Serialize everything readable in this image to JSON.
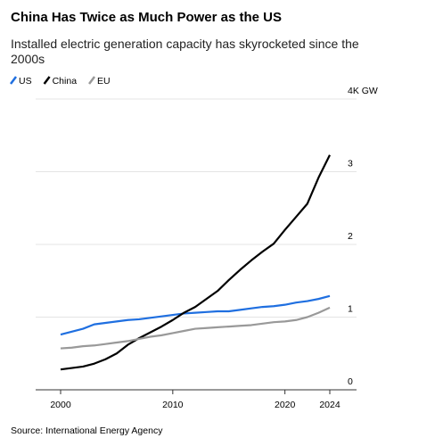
{
  "chart_data": {
    "type": "line",
    "title": "China Has Twice as Much Power as the US",
    "subtitle": [
      "Installed electric generation capacity has skyrocketed since the",
      "2000s"
    ],
    "source": "Source: International Energy Agency",
    "x": [
      2000,
      2001,
      2002,
      2003,
      2004,
      2005,
      2006,
      2007,
      2008,
      2009,
      2010,
      2011,
      2012,
      2013,
      2014,
      2015,
      2016,
      2017,
      2018,
      2019,
      2020,
      2021,
      2022,
      2023,
      2024
    ],
    "series": [
      {
        "name": "US",
        "color": "#1f6fe0",
        "values": [
          0.76,
          0.8,
          0.84,
          0.9,
          0.92,
          0.94,
          0.96,
          0.97,
          0.99,
          1.01,
          1.03,
          1.05,
          1.06,
          1.07,
          1.08,
          1.08,
          1.1,
          1.12,
          1.14,
          1.15,
          1.17,
          1.2,
          1.22,
          1.25,
          1.29
        ]
      },
      {
        "name": "China",
        "color": "#000000",
        "values": [
          0.28,
          0.3,
          0.32,
          0.36,
          0.42,
          0.5,
          0.62,
          0.71,
          0.79,
          0.87,
          0.96,
          1.06,
          1.14,
          1.25,
          1.36,
          1.51,
          1.65,
          1.78,
          1.9,
          2.01,
          2.2,
          2.38,
          2.56,
          2.92,
          3.23
        ]
      },
      {
        "name": "EU",
        "color": "#999999",
        "values": [
          0.57,
          0.58,
          0.6,
          0.61,
          0.63,
          0.65,
          0.67,
          0.7,
          0.73,
          0.75,
          0.78,
          0.81,
          0.84,
          0.85,
          0.86,
          0.87,
          0.88,
          0.89,
          0.91,
          0.93,
          0.94,
          0.96,
          1.0,
          1.06,
          1.13
        ]
      }
    ],
    "xlim": [
      2000,
      2024
    ],
    "xticks": [
      2000,
      2010,
      2020,
      2024
    ],
    "ylim": [
      0,
      4
    ],
    "yticks": [
      0,
      1,
      2,
      3,
      {
        "value": 4,
        "label": "4K GW"
      }
    ],
    "grid": true
  }
}
